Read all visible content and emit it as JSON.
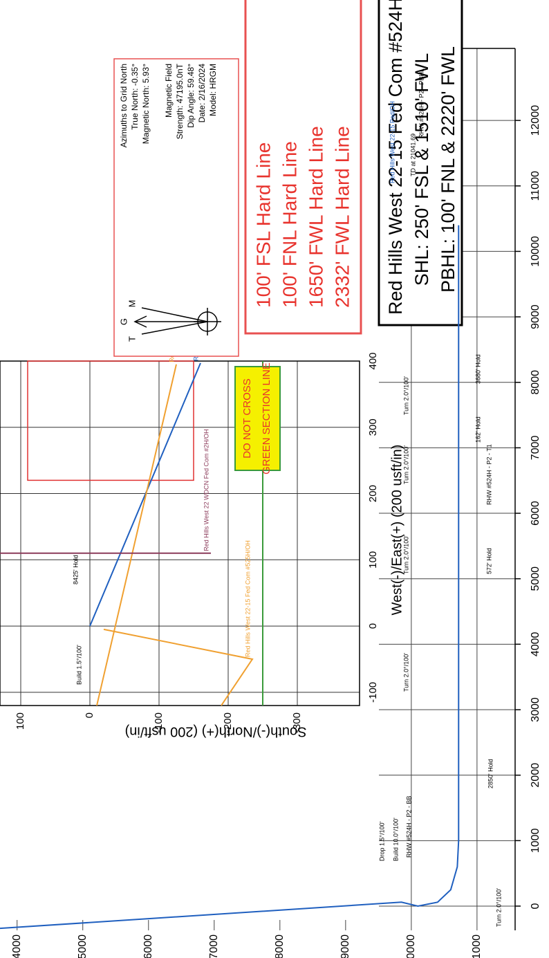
{
  "chart_data": [
    {
      "type": "line",
      "x_label": "West(-)/East(+) (200 usft/in)",
      "y_label": "South(-)/North(+) (200 usft/in)",
      "xlim": [
        -120,
        400
      ],
      "xticks": [
        -100,
        0,
        100,
        200,
        300,
        400
      ],
      "ylim": [
        -390,
        130
      ],
      "yticks": [
        -300,
        -200,
        -100,
        0,
        100
      ],
      "grid": true,
      "series": [
        {
          "name": "Red Hills West 22-15 Fed Com #524H/OH",
          "color": "#1f5fbf",
          "x": [
            0,
            397
          ],
          "values": [
            0,
            -160
          ]
        },
        {
          "name": "Red Hills West 22-15 Fed Com #523H/OH",
          "color": "#f0a030",
          "x": [
            -120,
            395
          ],
          "values": [
            -10,
            -125
          ]
        },
        {
          "name": "Red Hills West 22-15 Fed Com #525H/OH",
          "color": "#f0a030",
          "x": [
            -5,
            -50,
            -120
          ],
          "values": [
            -20,
            -235,
            -190
          ]
        },
        {
          "name": "Red Hills West 22 WDCN Fed Com #2H/OH",
          "color": "#8b3a5a",
          "x": [
            110,
            110
          ],
          "values": [
            130,
            -175
          ]
        }
      ],
      "hard_line_box": {
        "color": "#e03030",
        "x": [
          220,
          400
        ],
        "y": [
          -150,
          90
        ]
      },
      "section_line": {
        "color": "#3a9a3a",
        "value": -250,
        "label": [
          "DO NOT CROSS",
          "GREEN SECTION LINE"
        ]
      },
      "annotations": [
        "Build 1.5°/100'",
        "8425' Hold"
      ]
    },
    {
      "type": "line",
      "xlim": [
        -370,
        13100
      ],
      "xticks": [
        0,
        1000,
        2000,
        3000,
        4000,
        5000,
        6000,
        7000,
        8000,
        9000,
        10000,
        11000,
        12000
      ],
      "ylim": [
        3740,
        11580
      ],
      "y_inverted": true,
      "yticks": [
        4000,
        5000,
        6000,
        7000,
        8000,
        9000,
        10000,
        11000
      ],
      "grid": true,
      "series": [
        {
          "name": "Red Hills West 22-15 Pad/OH",
          "color": "#1f5fbf",
          "x": [
            -340,
            60,
            0,
            60,
            250,
            600,
            1000,
            10400
          ],
          "values": [
            3740,
            9850,
            10100,
            10400,
            10600,
            10700,
            10720,
            10720
          ]
        }
      ],
      "annotations": [
        "Drop 1.5°/100'",
        "Build 10.0°/100'",
        "RHW #524H - P2 - BB",
        "Turn 2.0°/100'",
        "2850' Hold",
        "Turn 2.0°/100'",
        "572' Hold",
        "Turn 2.0°/100'",
        "Turn 2.0°/100'",
        "RHW #524H - P2 - T1",
        "Turn 2.0°/100'",
        "162' Hold",
        "3680' Hold",
        "TD at 21041.69",
        "RHW #524H - P2 - PBHL"
      ]
    }
  ],
  "title_box": {
    "lines": [
      "Red Hills West 22-15 Fed Com #524H",
      "SHL: 250' FSL & 1510' FWL",
      "PBHL: 100' FNL & 2220' FWL"
    ]
  },
  "hard_lines": [
    "100' FSL Hard Line",
    "100' FNL Hard Line",
    "1650' FWL Hard Line",
    "2332' FWL Hard Line"
  ],
  "north_box": {
    "symbols": [
      "T",
      "G",
      "M"
    ],
    "azimuths": [
      "Azimuths to Grid North",
      "True North: -0.35°",
      "Magnetic North: 5.93°"
    ],
    "field": [
      "Magnetic Field",
      "Strength: 47195.0nT",
      "Dip Angle: 59.48°",
      "Date: 2/16/2024",
      "Model: HRGM"
    ]
  }
}
